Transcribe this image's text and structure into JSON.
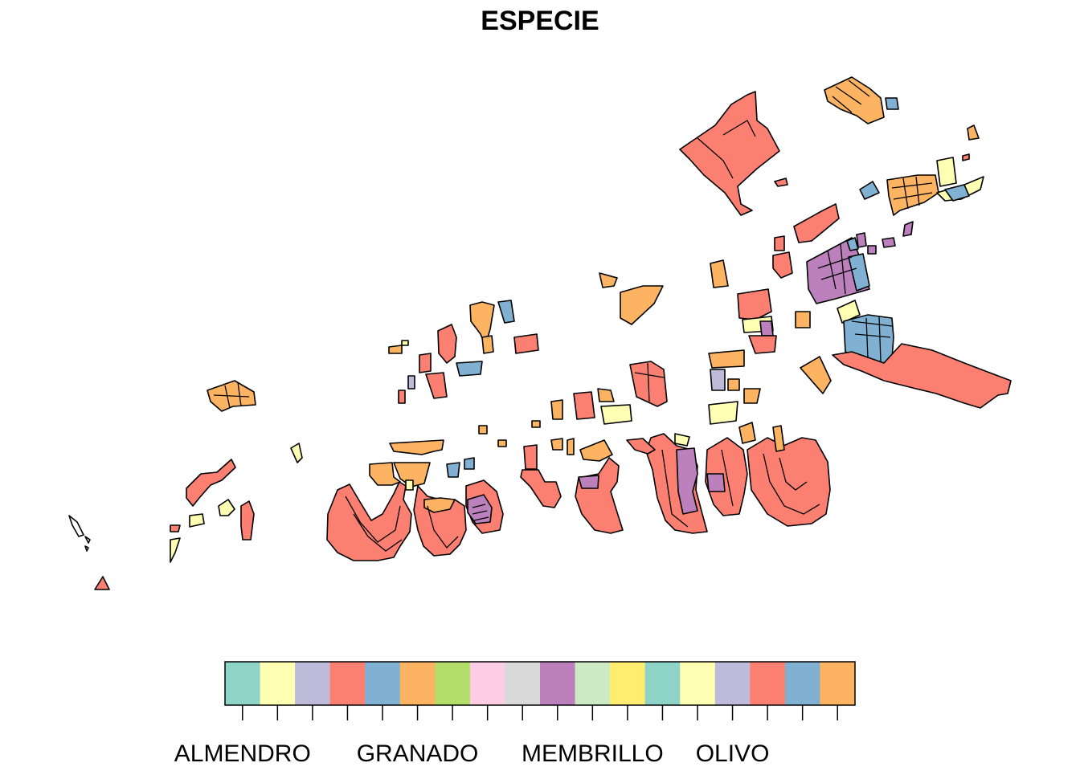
{
  "map": {
    "title": "ESPECIE",
    "palette": {
      "teal": "#8DD3C7",
      "light_yellow": "#FFFFB3",
      "lavender": "#BEBADA",
      "salmon": "#FB8072",
      "steel_blue": "#80B1D3",
      "orange": "#FDB462",
      "green": "#B3DE69",
      "pink": "#FCCDE5",
      "grey": "#D9D9D9",
      "purple": "#BC80BD",
      "mint": "#CCEBC5",
      "yellow": "#FFED6F"
    }
  },
  "legend": {
    "swatches": [
      "#8DD3C7",
      "#FFFFB3",
      "#BEBADA",
      "#FB8072",
      "#80B1D3",
      "#FDB462",
      "#B3DE69",
      "#FCCDE5",
      "#D9D9D9",
      "#BC80BD",
      "#CCEBC5",
      "#FFED6F",
      "#8DD3C7",
      "#FFFFB3",
      "#BEBADA",
      "#FB8072",
      "#80B1D3",
      "#FDB462"
    ],
    "labels": [
      {
        "text": "ALMENDRO",
        "tick": 0
      },
      {
        "text": "GRANADO",
        "tick": 5
      },
      {
        "text": "MEMBRILLO",
        "tick": 10
      },
      {
        "text": "OLIVO",
        "tick": 14
      }
    ]
  }
}
